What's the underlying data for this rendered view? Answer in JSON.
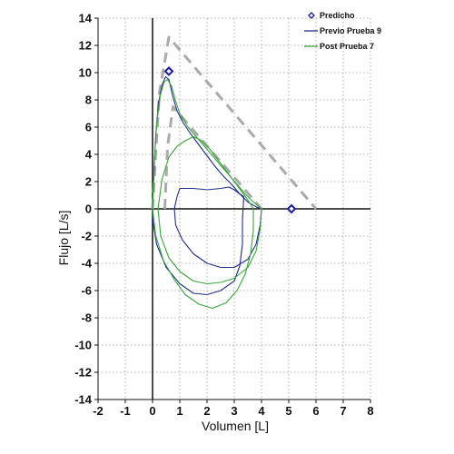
{
  "chart_data": {
    "type": "line",
    "xlabel": "Volumen [L]",
    "ylabel": "Flujo [L/s]",
    "xlim": [
      -2,
      8
    ],
    "ylim": [
      -14,
      14
    ],
    "xticks": [
      -2,
      -1,
      0,
      1,
      2,
      3,
      4,
      5,
      6,
      7,
      8
    ],
    "yticks": [
      -14,
      -12,
      -10,
      -8,
      -6,
      -4,
      -2,
      0,
      2,
      4,
      6,
      8,
      10,
      12,
      14
    ],
    "grid": true,
    "legend": "top-right",
    "colors": {
      "predicted": "#1a1aa0",
      "pre": "#1f2f8a",
      "post": "#3aa63a",
      "reference": "#aaaaaa"
    },
    "series": [
      {
        "name": "Predicho",
        "kind": "markers",
        "points": [
          [
            0.6,
            10.1
          ],
          [
            5.1,
            0
          ]
        ]
      },
      {
        "name": "Previo Prueba 9",
        "kind": "line",
        "curves": [
          [
            [
              0,
              0
            ],
            [
              0.05,
              2.5
            ],
            [
              0.12,
              5.5
            ],
            [
              0.22,
              7.8
            ],
            [
              0.35,
              9.1
            ],
            [
              0.48,
              9.7
            ],
            [
              0.6,
              9.5
            ],
            [
              0.75,
              8.2
            ],
            [
              0.9,
              7.2
            ],
            [
              1.1,
              6.4
            ],
            [
              1.4,
              5.5
            ],
            [
              1.7,
              4.7
            ],
            [
              2.0,
              3.9
            ],
            [
              2.3,
              3.1
            ],
            [
              2.6,
              2.4
            ],
            [
              2.9,
              1.8
            ],
            [
              3.2,
              1.1
            ],
            [
              3.5,
              0.5
            ],
            [
              3.8,
              0.15
            ],
            [
              4.0,
              0
            ]
          ],
          [
            [
              4.0,
              0
            ],
            [
              3.95,
              -1.2
            ],
            [
              3.8,
              -2.6
            ],
            [
              3.5,
              -3.7
            ],
            [
              3.0,
              -4.3
            ],
            [
              2.5,
              -4.3
            ],
            [
              2.0,
              -4.0
            ],
            [
              1.5,
              -3.3
            ],
            [
              1.1,
              -2.3
            ],
            [
              0.85,
              -1.2
            ],
            [
              0.8,
              0
            ],
            [
              0.9,
              0.9
            ],
            [
              1.0,
              1.5
            ],
            [
              1.5,
              1.5
            ],
            [
              2.0,
              1.4
            ],
            [
              2.5,
              1.5
            ],
            [
              2.8,
              1.6
            ],
            [
              3.0,
              1.4
            ],
            [
              3.2,
              1.1
            ],
            [
              3.35,
              0.9
            ]
          ],
          [
            [
              3.35,
              0.9
            ],
            [
              3.3,
              -0.8
            ],
            [
              3.3,
              -2.6
            ],
            [
              3.2,
              -4.2
            ],
            [
              3.0,
              -5.3
            ],
            [
              2.5,
              -6.0
            ],
            [
              2.0,
              -6.3
            ],
            [
              1.5,
              -6.2
            ],
            [
              1.0,
              -5.5
            ],
            [
              0.5,
              -4.3
            ],
            [
              0.15,
              -2.6
            ],
            [
              0.02,
              -1.0
            ],
            [
              0,
              0
            ]
          ]
        ]
      },
      {
        "name": "Post Prueba 7",
        "kind": "line",
        "curves": [
          [
            [
              0,
              0
            ],
            [
              0.05,
              3.0
            ],
            [
              0.15,
              6.2
            ],
            [
              0.28,
              8.3
            ],
            [
              0.42,
              9.3
            ],
            [
              0.55,
              9.5
            ],
            [
              0.7,
              9.0
            ],
            [
              0.85,
              7.9
            ],
            [
              1.0,
              7.0
            ],
            [
              1.3,
              6.0
            ],
            [
              1.6,
              5.3
            ],
            [
              1.9,
              4.6
            ],
            [
              2.2,
              3.9
            ],
            [
              2.5,
              3.2
            ],
            [
              2.8,
              2.5
            ],
            [
              3.1,
              1.8
            ],
            [
              3.4,
              1.1
            ],
            [
              3.7,
              0.5
            ],
            [
              4.0,
              0
            ]
          ],
          [
            [
              4.0,
              0
            ],
            [
              3.95,
              -1.5
            ],
            [
              3.8,
              -3.1
            ],
            [
              3.5,
              -4.3
            ],
            [
              3.0,
              -5.1
            ],
            [
              2.5,
              -5.4
            ],
            [
              2.0,
              -5.5
            ],
            [
              1.5,
              -5.3
            ],
            [
              1.0,
              -4.6
            ],
            [
              0.6,
              -3.6
            ],
            [
              0.3,
              -2.0
            ],
            [
              0.2,
              0
            ],
            [
              0.35,
              2.2
            ],
            [
              0.6,
              3.8
            ],
            [
              0.9,
              4.6
            ],
            [
              1.2,
              5.0
            ],
            [
              1.5,
              5.3
            ],
            [
              1.8,
              5.0
            ],
            [
              2.1,
              4.4
            ],
            [
              2.4,
              3.6
            ],
            [
              2.7,
              2.8
            ],
            [
              3.0,
              2.0
            ],
            [
              3.3,
              1.2
            ],
            [
              3.55,
              0.5
            ],
            [
              3.7,
              0
            ]
          ],
          [
            [
              3.7,
              0
            ],
            [
              3.7,
              -1.6
            ],
            [
              3.6,
              -3.3
            ],
            [
              3.4,
              -4.8
            ],
            [
              3.1,
              -6.0
            ],
            [
              2.7,
              -6.9
            ],
            [
              2.2,
              -7.3
            ],
            [
              1.7,
              -7.0
            ],
            [
              1.2,
              -6.3
            ],
            [
              0.8,
              -5.2
            ],
            [
              0.4,
              -3.8
            ],
            [
              0.12,
              -2.0
            ],
            [
              0,
              0
            ]
          ]
        ]
      },
      {
        "name": "",
        "kind": "reference",
        "curves": [
          [
            [
              0,
              0
            ],
            [
              0.25,
              8.5
            ],
            [
              0.6,
              12.6
            ],
            [
              6.0,
              0
            ]
          ],
          [
            [
              0.45,
              0
            ],
            [
              0.55,
              4.5
            ],
            [
              0.75,
              7.5
            ],
            [
              4.0,
              0
            ]
          ]
        ]
      }
    ]
  }
}
